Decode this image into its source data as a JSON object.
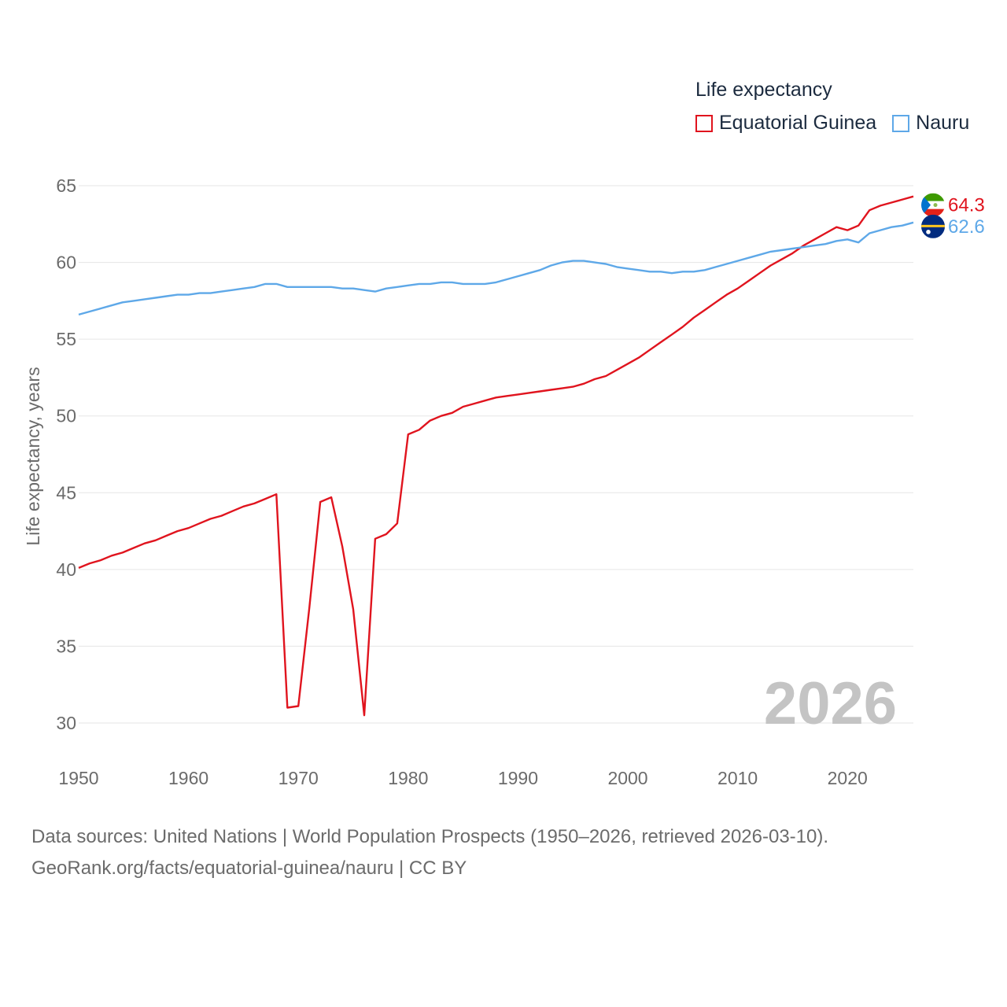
{
  "legend": {
    "title": "Life expectancy",
    "items": [
      {
        "label": "Equatorial Guinea",
        "color": "#e0141e"
      },
      {
        "label": "Nauru",
        "color": "#5ea8e8"
      }
    ]
  },
  "source": {
    "line1": "Data sources: United Nations | World Population Prospects (1950–2026, retrieved 2026-03-10).",
    "line2": "GeoRank.org/facts/equatorial-guinea/nauru | CC BY"
  },
  "chart_data": {
    "type": "line",
    "title": "Life expectancy",
    "xlabel": "",
    "ylabel": "Life expectancy, years",
    "xlim": [
      1950,
      2026
    ],
    "ylim": [
      30,
      65
    ],
    "x_ticks": [
      1950,
      1960,
      1970,
      1980,
      1990,
      2000,
      2010,
      2020
    ],
    "y_ticks": [
      30,
      35,
      40,
      45,
      50,
      55,
      60,
      65
    ],
    "grid": true,
    "watermark_year": "2026",
    "series": [
      {
        "name": "Equatorial Guinea",
        "color": "#e0141e",
        "end_label": "64.3",
        "flag_icon": "equatorial-guinea-flag-icon",
        "points": [
          [
            1950,
            40.1
          ],
          [
            1951,
            40.4
          ],
          [
            1952,
            40.6
          ],
          [
            1953,
            40.9
          ],
          [
            1954,
            41.1
          ],
          [
            1955,
            41.4
          ],
          [
            1956,
            41.7
          ],
          [
            1957,
            41.9
          ],
          [
            1958,
            42.2
          ],
          [
            1959,
            42.5
          ],
          [
            1960,
            42.7
          ],
          [
            1961,
            43.0
          ],
          [
            1962,
            43.3
          ],
          [
            1963,
            43.5
          ],
          [
            1964,
            43.8
          ],
          [
            1965,
            44.1
          ],
          [
            1966,
            44.3
          ],
          [
            1967,
            44.6
          ],
          [
            1968,
            44.9
          ],
          [
            1969,
            31.0
          ],
          [
            1970,
            31.1
          ],
          [
            1971,
            37.5
          ],
          [
            1972,
            44.4
          ],
          [
            1973,
            44.7
          ],
          [
            1974,
            41.5
          ],
          [
            1975,
            37.4
          ],
          [
            1976,
            30.5
          ],
          [
            1977,
            42.0
          ],
          [
            1978,
            42.3
          ],
          [
            1979,
            43.0
          ],
          [
            1980,
            48.8
          ],
          [
            1981,
            49.1
          ],
          [
            1982,
            49.7
          ],
          [
            1983,
            50.0
          ],
          [
            1984,
            50.2
          ],
          [
            1985,
            50.6
          ],
          [
            1986,
            50.8
          ],
          [
            1987,
            51.0
          ],
          [
            1988,
            51.2
          ],
          [
            1989,
            51.3
          ],
          [
            1990,
            51.4
          ],
          [
            1991,
            51.5
          ],
          [
            1992,
            51.6
          ],
          [
            1993,
            51.7
          ],
          [
            1994,
            51.8
          ],
          [
            1995,
            51.9
          ],
          [
            1996,
            52.1
          ],
          [
            1997,
            52.4
          ],
          [
            1998,
            52.6
          ],
          [
            1999,
            53.0
          ],
          [
            2000,
            53.4
          ],
          [
            2001,
            53.8
          ],
          [
            2002,
            54.3
          ],
          [
            2003,
            54.8
          ],
          [
            2004,
            55.3
          ],
          [
            2005,
            55.8
          ],
          [
            2006,
            56.4
          ],
          [
            2007,
            56.9
          ],
          [
            2008,
            57.4
          ],
          [
            2009,
            57.9
          ],
          [
            2010,
            58.3
          ],
          [
            2011,
            58.8
          ],
          [
            2012,
            59.3
          ],
          [
            2013,
            59.8
          ],
          [
            2014,
            60.2
          ],
          [
            2015,
            60.6
          ],
          [
            2016,
            61.1
          ],
          [
            2017,
            61.5
          ],
          [
            2018,
            61.9
          ],
          [
            2019,
            62.3
          ],
          [
            2020,
            62.1
          ],
          [
            2021,
            62.4
          ],
          [
            2022,
            63.4
          ],
          [
            2023,
            63.7
          ],
          [
            2024,
            63.9
          ],
          [
            2025,
            64.1
          ],
          [
            2026,
            64.3
          ]
        ]
      },
      {
        "name": "Nauru",
        "color": "#5ea8e8",
        "end_label": "62.6",
        "flag_icon": "nauru-flag-icon",
        "points": [
          [
            1950,
            56.6
          ],
          [
            1951,
            56.8
          ],
          [
            1952,
            57.0
          ],
          [
            1953,
            57.2
          ],
          [
            1954,
            57.4
          ],
          [
            1955,
            57.5
          ],
          [
            1956,
            57.6
          ],
          [
            1957,
            57.7
          ],
          [
            1958,
            57.8
          ],
          [
            1959,
            57.9
          ],
          [
            1960,
            57.9
          ],
          [
            1961,
            58.0
          ],
          [
            1962,
            58.0
          ],
          [
            1963,
            58.1
          ],
          [
            1964,
            58.2
          ],
          [
            1965,
            58.3
          ],
          [
            1966,
            58.4
          ],
          [
            1967,
            58.6
          ],
          [
            1968,
            58.6
          ],
          [
            1969,
            58.4
          ],
          [
            1970,
            58.4
          ],
          [
            1971,
            58.4
          ],
          [
            1972,
            58.4
          ],
          [
            1973,
            58.4
          ],
          [
            1974,
            58.3
          ],
          [
            1975,
            58.3
          ],
          [
            1976,
            58.2
          ],
          [
            1977,
            58.1
          ],
          [
            1978,
            58.3
          ],
          [
            1979,
            58.4
          ],
          [
            1980,
            58.5
          ],
          [
            1981,
            58.6
          ],
          [
            1982,
            58.6
          ],
          [
            1983,
            58.7
          ],
          [
            1984,
            58.7
          ],
          [
            1985,
            58.6
          ],
          [
            1986,
            58.6
          ],
          [
            1987,
            58.6
          ],
          [
            1988,
            58.7
          ],
          [
            1989,
            58.9
          ],
          [
            1990,
            59.1
          ],
          [
            1991,
            59.3
          ],
          [
            1992,
            59.5
          ],
          [
            1993,
            59.8
          ],
          [
            1994,
            60.0
          ],
          [
            1995,
            60.1
          ],
          [
            1996,
            60.1
          ],
          [
            1997,
            60.0
          ],
          [
            1998,
            59.9
          ],
          [
            1999,
            59.7
          ],
          [
            2000,
            59.6
          ],
          [
            2001,
            59.5
          ],
          [
            2002,
            59.4
          ],
          [
            2003,
            59.4
          ],
          [
            2004,
            59.3
          ],
          [
            2005,
            59.4
          ],
          [
            2006,
            59.4
          ],
          [
            2007,
            59.5
          ],
          [
            2008,
            59.7
          ],
          [
            2009,
            59.9
          ],
          [
            2010,
            60.1
          ],
          [
            2011,
            60.3
          ],
          [
            2012,
            60.5
          ],
          [
            2013,
            60.7
          ],
          [
            2014,
            60.8
          ],
          [
            2015,
            60.9
          ],
          [
            2016,
            61.0
          ],
          [
            2017,
            61.1
          ],
          [
            2018,
            61.2
          ],
          [
            2019,
            61.4
          ],
          [
            2020,
            61.5
          ],
          [
            2021,
            61.3
          ],
          [
            2022,
            61.9
          ],
          [
            2023,
            62.1
          ],
          [
            2024,
            62.3
          ],
          [
            2025,
            62.4
          ],
          [
            2026,
            62.6
          ]
        ]
      }
    ]
  }
}
